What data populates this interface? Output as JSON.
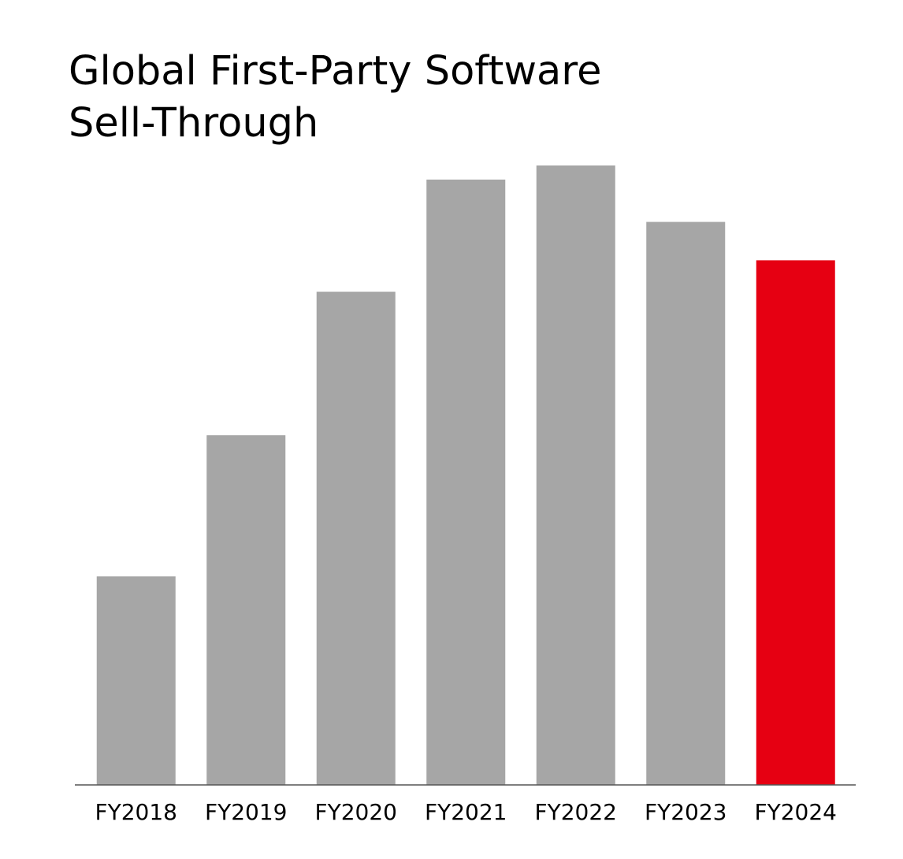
{
  "chart_data": {
    "type": "bar",
    "title": "Global First-Party Software Sell-Through",
    "categories": [
      "FY2018",
      "FY2019",
      "FY2020",
      "FY2021",
      "FY2022",
      "FY2023",
      "FY2024"
    ],
    "values": [
      266,
      446,
      629,
      772,
      790,
      718,
      669
    ],
    "colors": [
      "#a6a6a6",
      "#a6a6a6",
      "#a6a6a6",
      "#a6a6a6",
      "#a6a6a6",
      "#a6a6a6",
      "#e60012"
    ],
    "ylim": [
      0,
      800
    ],
    "grid": false
  }
}
